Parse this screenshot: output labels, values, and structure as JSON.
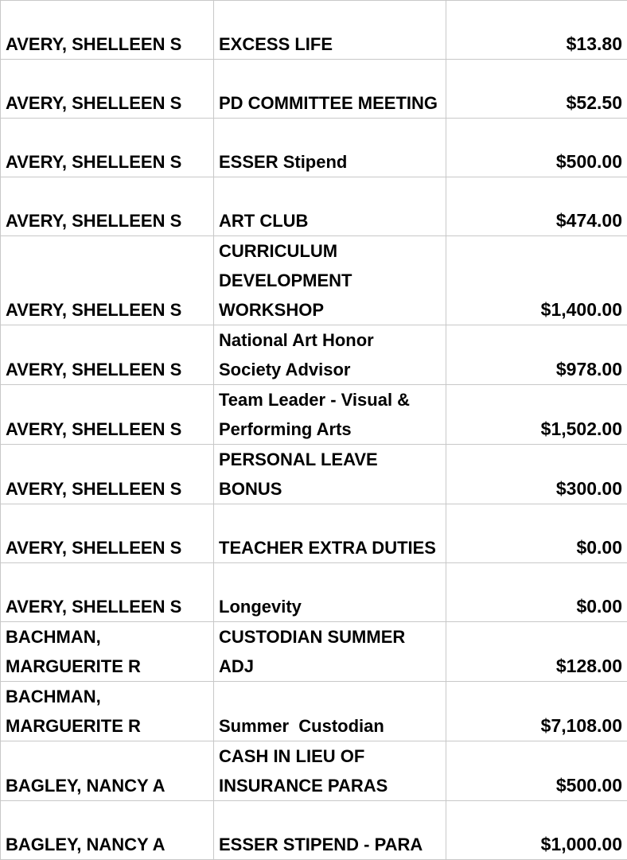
{
  "table": {
    "rows": [
      [
        "AVERY, SHELLEEN S",
        "EXCESS LIFE",
        "$13.80"
      ],
      [
        "AVERY, SHELLEEN S",
        "PD COMMITTEE MEETING",
        "$52.50"
      ],
      [
        "AVERY, SHELLEEN S",
        "ESSER Stipend",
        "$500.00"
      ],
      [
        "AVERY, SHELLEEN S",
        "ART CLUB",
        "$474.00"
      ],
      [
        "AVERY, SHELLEEN S",
        "CURRICULUM DEVELOPMENT WORKSHOP",
        "$1,400.00"
      ],
      [
        "AVERY, SHELLEEN S",
        "National Art Honor Society Advisor",
        "$978.00"
      ],
      [
        "AVERY, SHELLEEN S",
        "Team Leader - Visual & Performing Arts",
        "$1,502.00"
      ],
      [
        "AVERY, SHELLEEN S",
        "PERSONAL LEAVE BONUS",
        "$300.00"
      ],
      [
        "AVERY, SHELLEEN S",
        "TEACHER EXTRA DUTIES",
        "$0.00"
      ],
      [
        "AVERY, SHELLEEN S",
        "Longevity",
        "$0.00"
      ],
      [
        "BACHMAN, MARGUERITE R",
        "CUSTODIAN SUMMER ADJ",
        "$128.00"
      ],
      [
        "BACHMAN, MARGUERITE R",
        "Summer  Custodian",
        "$7,108.00"
      ],
      [
        "BAGLEY, NANCY A",
        "CASH IN LIEU OF INSURANCE PARAS",
        "$500.00"
      ],
      [
        "BAGLEY, NANCY A",
        "ESSER STIPEND - PARA",
        "$1,000.00"
      ]
    ]
  }
}
